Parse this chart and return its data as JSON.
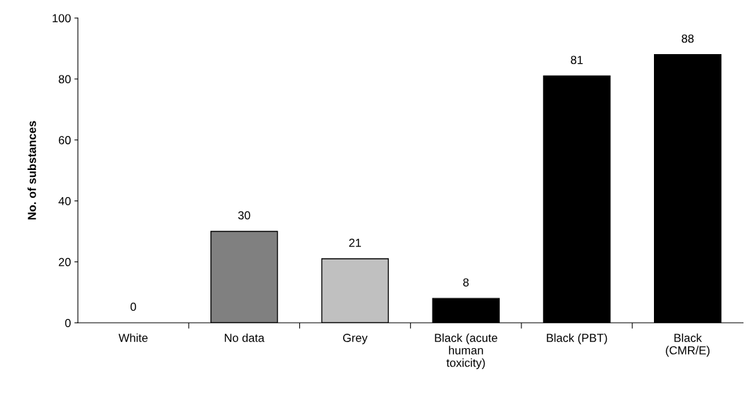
{
  "chart_data": {
    "type": "bar",
    "ylabel": "No. of substances",
    "categories": [
      "White",
      "No data",
      "Grey",
      "Black (acute human toxicity)",
      "Black (PBT)",
      "Black (CMR/E)"
    ],
    "values": [
      0,
      30,
      21,
      8,
      81,
      88
    ],
    "colors": [
      "#ffffff",
      "#808080",
      "#c0c0c0",
      "#000000",
      "#000000",
      "#000000"
    ],
    "ylim": [
      0,
      100
    ],
    "yticks": [
      0,
      20,
      40,
      60,
      80,
      100
    ],
    "grid": false,
    "data_labels": true
  }
}
